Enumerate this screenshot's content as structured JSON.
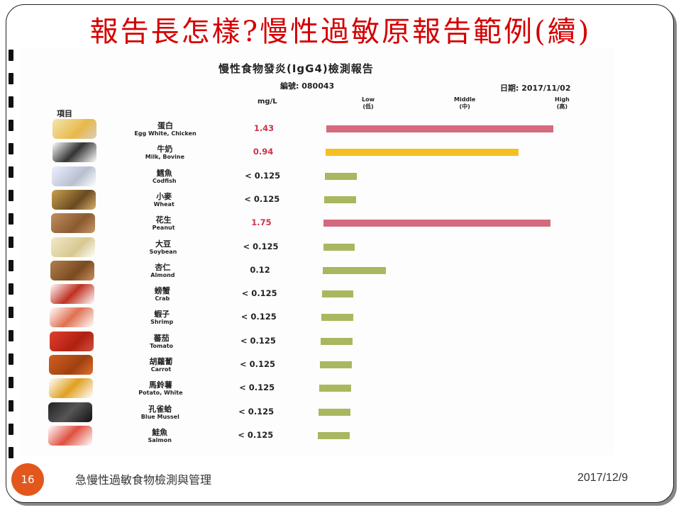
{
  "slide": {
    "title": "報告長怎樣?慢性過敏原報告範例(續)",
    "number": "16",
    "footer_text": "急慢性過敏食物檢測與管理",
    "footer_date": "2017/12/9"
  },
  "report": {
    "title": "慢性食物發炎(IgG4)檢測報告",
    "serial": "編號: 080043",
    "date": "日期: 2017/11/02",
    "unit": "mg/L",
    "items_header": "項目",
    "scale_low": "Low",
    "scale_low_zh": "(低)",
    "scale_mid": "Middle",
    "scale_mid_zh": "(中)",
    "scale_high": "High",
    "scale_high_zh": "(高)",
    "items": [
      {
        "zh": "蛋白",
        "en": "Egg White, Chicken",
        "value": "1.43",
        "level": "high",
        "bar_fraction": 1.0
      },
      {
        "zh": "牛奶",
        "en": "Milk, Bovine",
        "value": "0.94",
        "level": "middle",
        "bar_fraction": 0.85
      },
      {
        "zh": "鱈魚",
        "en": "Codfish",
        "value": "< 0.125",
        "level": "low",
        "bar_fraction": 0.14
      },
      {
        "zh": "小麥",
        "en": "Wheat",
        "value": "< 0.125",
        "level": "low",
        "bar_fraction": 0.14
      },
      {
        "zh": "花生",
        "en": "Peanut",
        "value": "1.75",
        "level": "high",
        "bar_fraction": 1.0
      },
      {
        "zh": "大豆",
        "en": "Soybean",
        "value": "< 0.125",
        "level": "low",
        "bar_fraction": 0.14
      },
      {
        "zh": "杏仁",
        "en": "Almond",
        "value": "0.12",
        "level": "low",
        "bar_fraction": 0.28
      },
      {
        "zh": "螃蟹",
        "en": "Crab",
        "value": "< 0.125",
        "level": "low",
        "bar_fraction": 0.14
      },
      {
        "zh": "蝦子",
        "en": "Shrimp",
        "value": "< 0.125",
        "level": "low",
        "bar_fraction": 0.14
      },
      {
        "zh": "蕃茄",
        "en": "Tomato",
        "value": "< 0.125",
        "level": "low",
        "bar_fraction": 0.14
      },
      {
        "zh": "胡蘿蔔",
        "en": "Carrot",
        "value": "< 0.125",
        "level": "low",
        "bar_fraction": 0.14
      },
      {
        "zh": "馬鈴薯",
        "en": "Potato, White",
        "value": "< 0.125",
        "level": "low",
        "bar_fraction": 0.14
      },
      {
        "zh": "孔雀蛤",
        "en": "Blue Mussel",
        "value": "< 0.125",
        "level": "low",
        "bar_fraction": 0.14
      },
      {
        "zh": "鮭魚",
        "en": "Salmon",
        "value": "< 0.125",
        "level": "low",
        "bar_fraction": 0.14
      }
    ]
  },
  "colors": {
    "title": "#d40000",
    "high_bar": "#d46a7e",
    "high_text": "#d0304a",
    "middle_bar": "#f4c020",
    "middle_text": "#d0304a",
    "low_bar": "#a8b860",
    "low_text": "#222222",
    "badge": "#e2581c"
  }
}
